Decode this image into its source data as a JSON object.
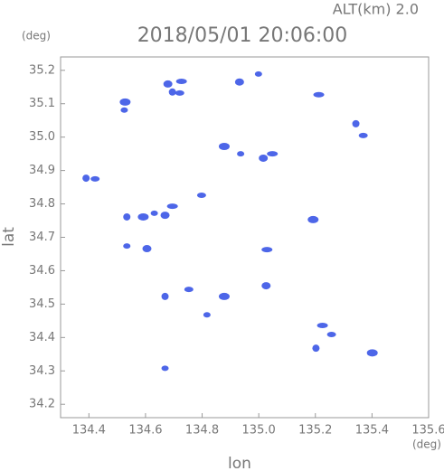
{
  "chart_data": {
    "type": "scatter",
    "title": "2018/05/01 20:06:00",
    "subtitle": "ALT(km) 2.0",
    "ylabel": "lat",
    "xlabel": "lon",
    "yunit": "(deg)",
    "xunit": "(deg)",
    "color": "#3a55e6",
    "x": [
      134.525,
      134.679,
      134.727,
      134.695,
      134.721,
      134.528,
      134.999,
      134.932,
      135.212,
      135.343,
      135.369,
      134.878,
      134.936,
      135.016,
      135.048,
      134.39,
      134.422,
      134.592,
      134.631,
      134.669,
      134.695,
      134.534,
      134.798,
      135.192,
      134.534,
      134.605,
      135.029,
      134.669,
      134.753,
      134.878,
      134.817,
      135.026,
      135.225,
      135.202,
      135.257,
      135.401,
      134.669
    ],
    "y": [
      35.081,
      35.159,
      35.167,
      35.135,
      35.132,
      35.105,
      35.189,
      35.165,
      35.127,
      35.04,
      35.005,
      34.972,
      34.95,
      34.937,
      34.95,
      34.877,
      34.875,
      34.761,
      34.772,
      34.766,
      34.793,
      34.761,
      34.826,
      34.753,
      34.674,
      34.666,
      34.663,
      34.523,
      34.544,
      34.523,
      34.468,
      34.555,
      34.436,
      34.368,
      34.409,
      34.354,
      34.308
    ],
    "xlim": [
      134.3,
      135.6
    ],
    "ylim": [
      34.16,
      35.24
    ],
    "xticks": [
      134.4,
      134.6,
      134.8,
      {
        "value": 135,
        "label": "135.0"
      },
      135.2,
      135.4,
      135.6
    ],
    "yticks": [
      34.2,
      34.3,
      34.4,
      34.5,
      34.6,
      34.7,
      34.8,
      34.9,
      {
        "value": 35,
        "label": "35.0"
      },
      35.1,
      35.2
    ]
  }
}
